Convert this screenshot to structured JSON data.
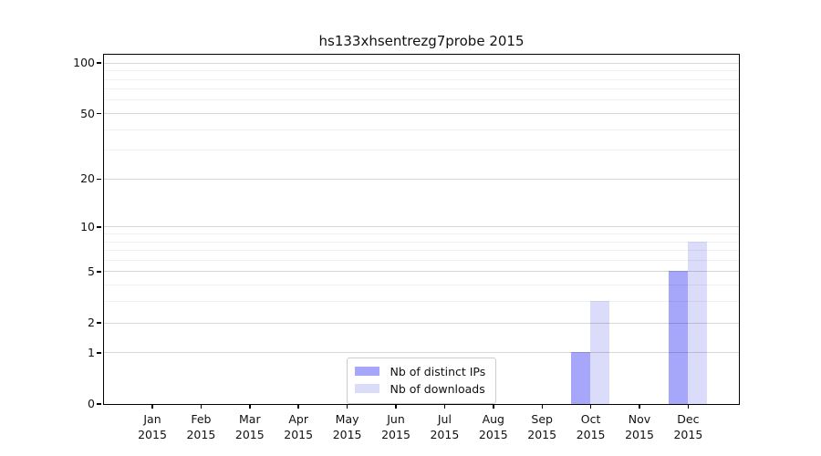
{
  "chart_data": {
    "type": "bar",
    "title": "hs133xhsentrezg7probe 2015",
    "categories": [
      "Jan 2015",
      "Feb 2015",
      "Mar 2015",
      "Apr 2015",
      "May 2015",
      "Jun 2015",
      "Jul 2015",
      "Aug 2015",
      "Sep 2015",
      "Oct 2015",
      "Nov 2015",
      "Dec 2015"
    ],
    "series": [
      {
        "name": "Nb of distinct IPs",
        "color": "#a6a6fa",
        "values": [
          0,
          0,
          0,
          0,
          0,
          0,
          0,
          0,
          0,
          1,
          0,
          5
        ]
      },
      {
        "name": "Nb of downloads",
        "color": "#dbdbfa",
        "values": [
          0,
          0,
          0,
          0,
          0,
          0,
          0,
          0,
          0,
          3,
          0,
          8
        ]
      }
    ],
    "yscale": "log10(1+v)",
    "ylim": [
      0,
      112
    ],
    "yticks": [
      0,
      1,
      2,
      5,
      10,
      20,
      50,
      100
    ],
    "yticks_minor": [
      3,
      4,
      6,
      7,
      8,
      9,
      30,
      40,
      60,
      70,
      80,
      90
    ],
    "grid": "horizontal",
    "legend_position": "bottom-center-inside"
  },
  "legend": {
    "items": [
      {
        "label": "Nb of distinct IPs",
        "color": "#a6a6fa"
      },
      {
        "label": "Nb of downloads",
        "color": "#dbdbfa"
      }
    ]
  }
}
